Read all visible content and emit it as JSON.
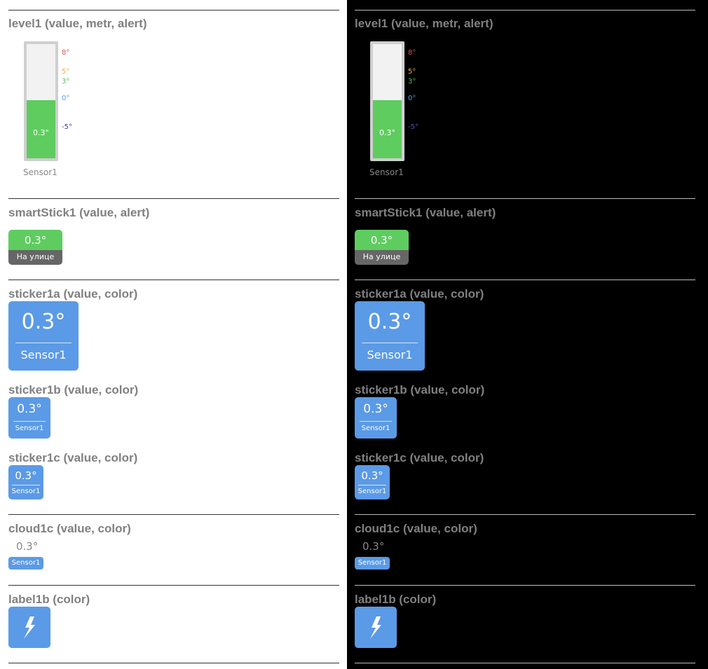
{
  "sections": {
    "level1": {
      "title": "level1 (value, metr, alert)",
      "value": "0.3°",
      "fill_fraction": 0.51,
      "caption": "Sensor1",
      "scale": [
        {
          "label": "8°",
          "color": "#d9534f"
        },
        {
          "label": "5°",
          "color": "#f0ad4e"
        },
        {
          "label": "3°",
          "color": "#5cb85c"
        },
        {
          "label": "0°",
          "color": "#5b9ae6"
        },
        {
          "label": "-5°",
          "color": "#3a3ab0"
        }
      ]
    },
    "smartstick1": {
      "title": "smartStick1 (value, alert)",
      "value": "0.3°",
      "caption": "На улице"
    },
    "sticker1a": {
      "title": "sticker1a (value, color)",
      "value": "0.3°",
      "caption": "Sensor1"
    },
    "sticker1b": {
      "title": "sticker1b (value, color)",
      "value": "0.3°",
      "caption": "Sensor1"
    },
    "sticker1c": {
      "title": "sticker1c (value, color)",
      "value": "0.3°",
      "caption": "Sensor1"
    },
    "cloud1c": {
      "title": "cloud1c (value, color)",
      "value": "0.3°",
      "caption": "Sensor1"
    },
    "label1b": {
      "title": "label1b (color)",
      "icon": "lightning-icon"
    }
  },
  "colors": {
    "green": "#5fcc5f",
    "blue": "#5b9ae6",
    "gray_bar": "#666666",
    "title_gray": "#808080"
  },
  "themes": [
    "light",
    "dark"
  ]
}
